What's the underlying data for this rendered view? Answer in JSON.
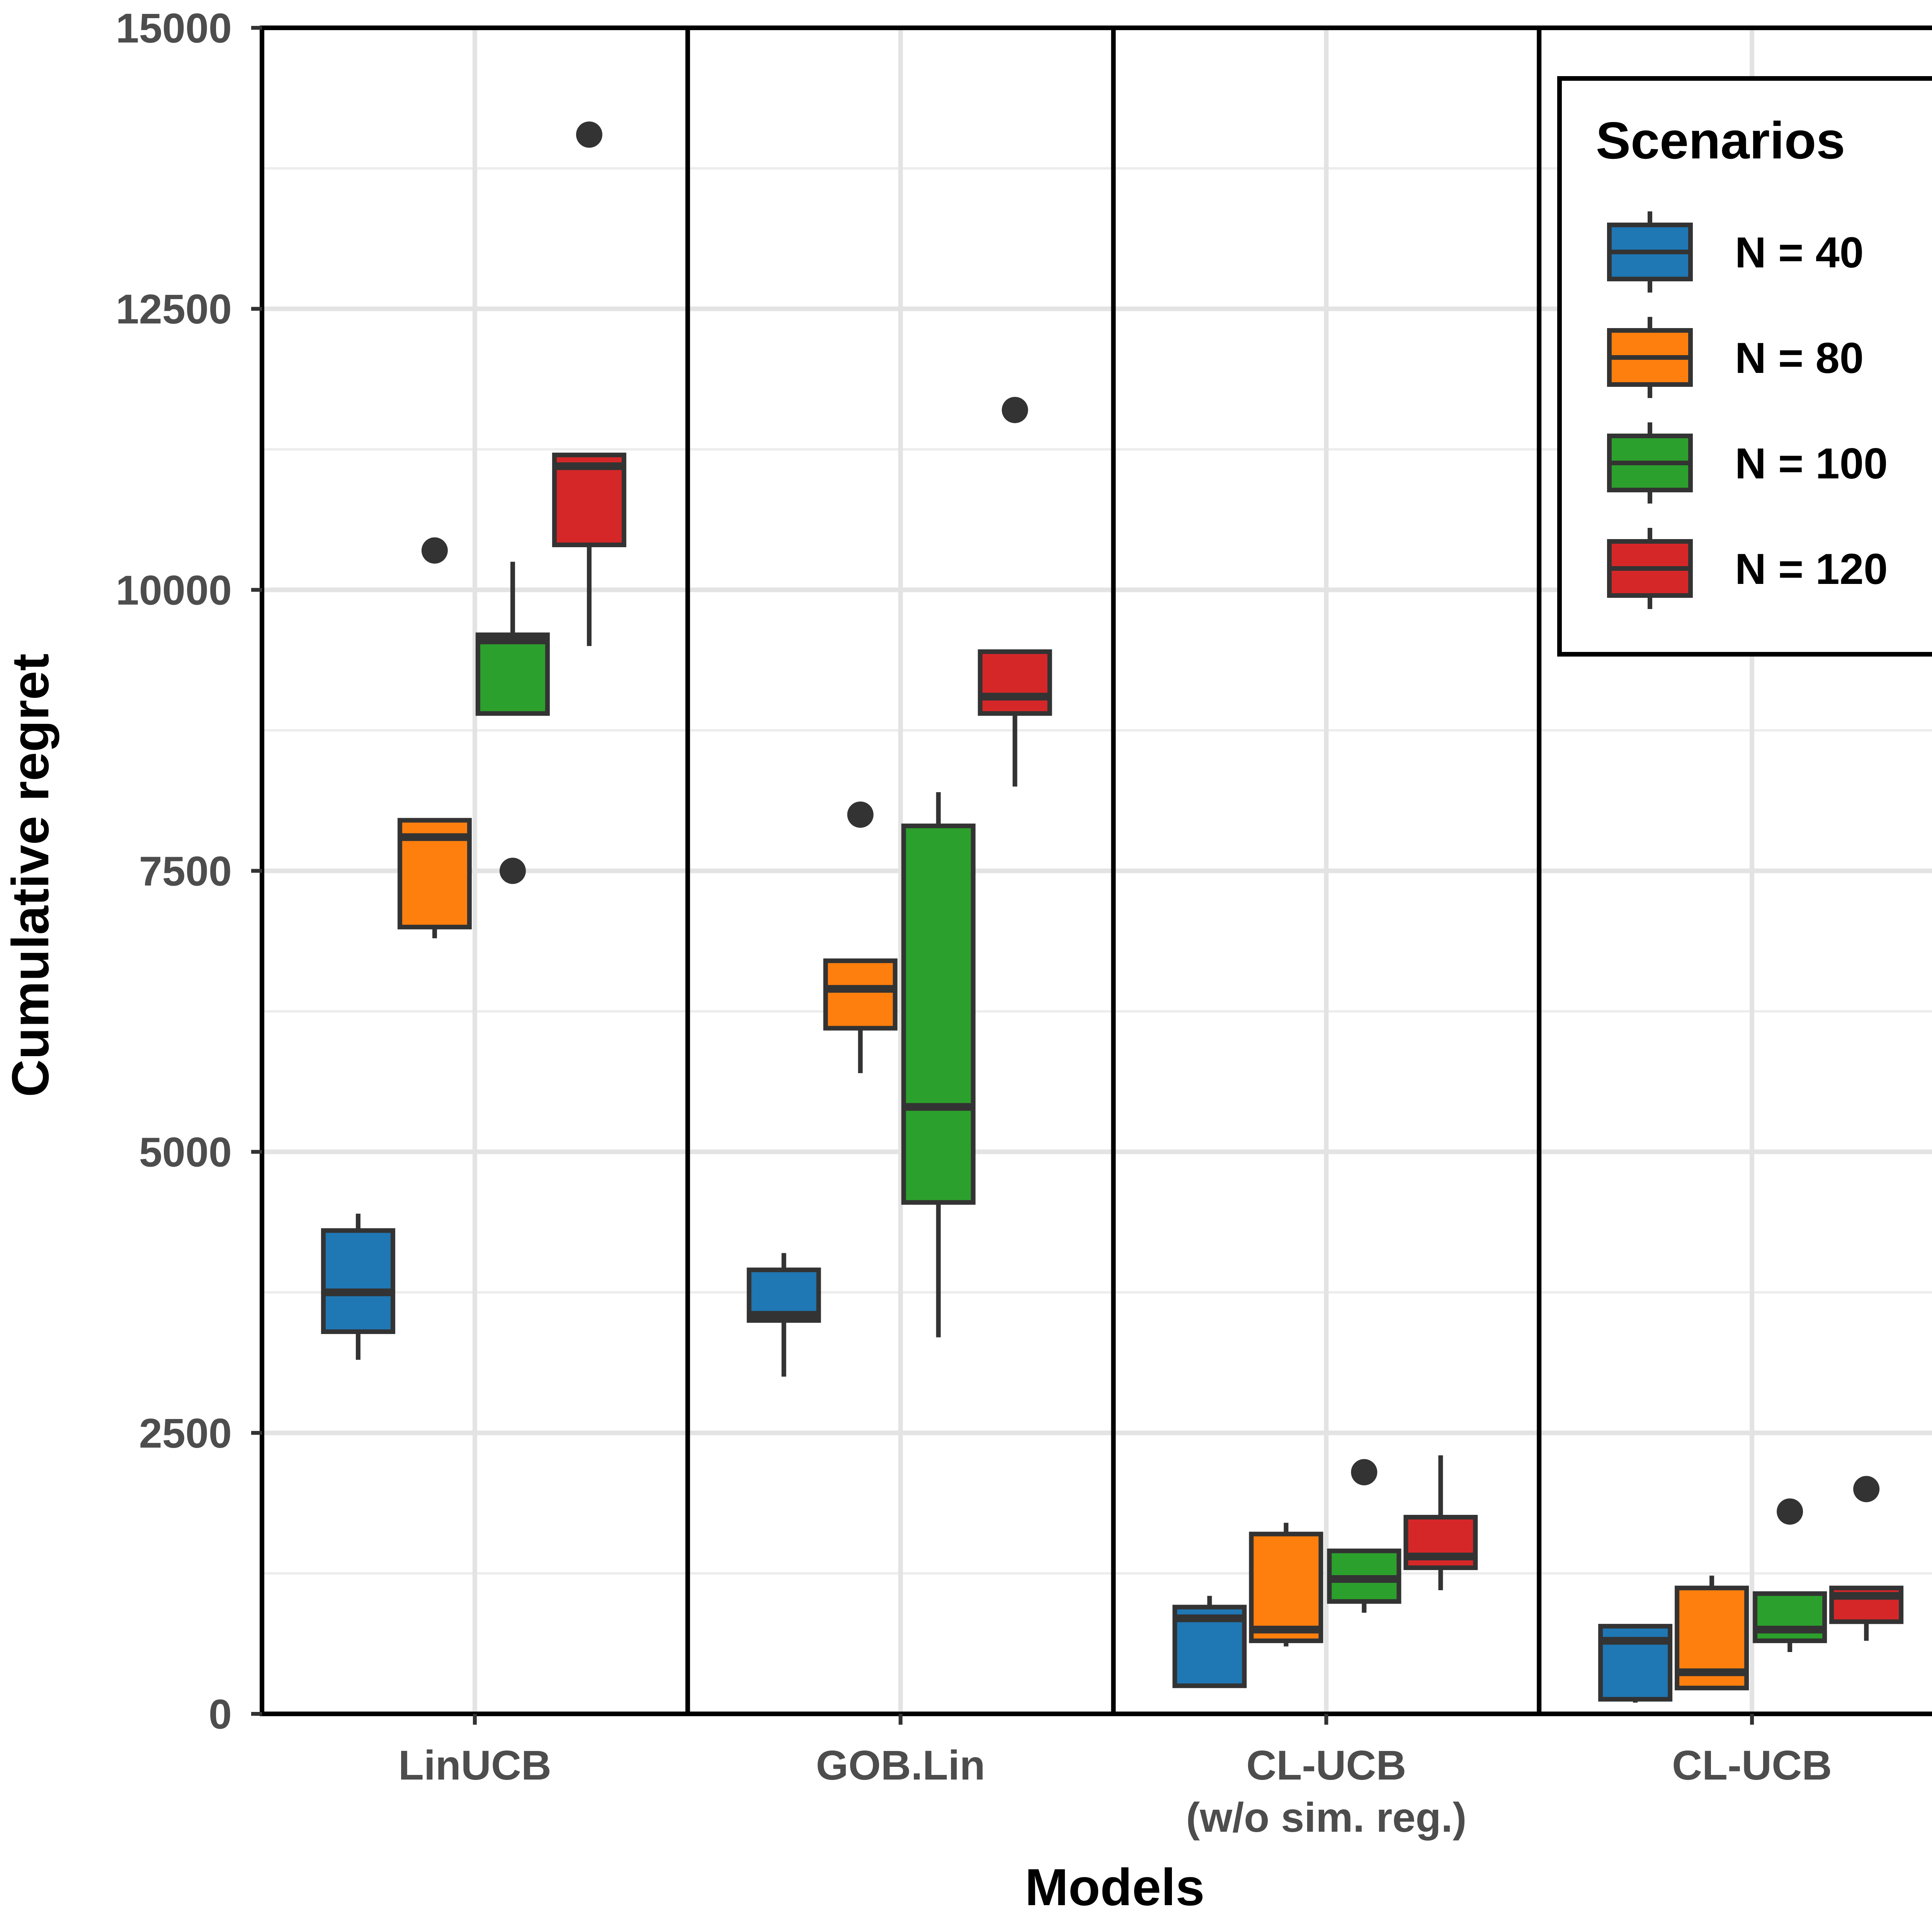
{
  "chart_data": {
    "type": "boxplot",
    "xlabel": "Models",
    "ylabel": "Cumulative regret",
    "ylim": [
      0,
      15000
    ],
    "y_ticks": [
      0,
      2500,
      5000,
      7500,
      10000,
      12500,
      15000
    ],
    "y_tick_labels": [
      "0",
      "2500",
      "5000",
      "7500",
      "10000",
      "12500",
      "15000"
    ],
    "grid": true,
    "panels": [
      {
        "label": [
          "LinUCB"
        ]
      },
      {
        "label": [
          "GOB.Lin"
        ]
      },
      {
        "label": [
          "CL-UCB",
          "(w/o sim. reg.)"
        ]
      },
      {
        "label": [
          "CL-UCB"
        ]
      }
    ],
    "legend": {
      "title": "Scenarios",
      "position": "top-right",
      "entries": [
        "N = 40",
        "N = 80",
        "N = 100",
        "N = 120"
      ]
    },
    "series": [
      {
        "name": "N = 40",
        "color": "#1f77b4",
        "boxes": [
          {
            "min": 3150,
            "q1": 3400,
            "median": 3750,
            "q3": 4300,
            "max": 4450,
            "outliers": []
          },
          {
            "min": 3000,
            "q1": 3500,
            "median": 3550,
            "q3": 3950,
            "max": 4100,
            "outliers": []
          },
          {
            "min": 250,
            "q1": 250,
            "median": 850,
            "q3": 950,
            "max": 1050,
            "outliers": []
          },
          {
            "min": 100,
            "q1": 130,
            "median": 650,
            "q3": 780,
            "max": 800,
            "outliers": []
          }
        ]
      },
      {
        "name": "N = 80",
        "color": "#ff7f0e",
        "boxes": [
          {
            "min": 6900,
            "q1": 7000,
            "median": 7800,
            "q3": 7950,
            "max": 7950,
            "outliers": [
              10350
            ]
          },
          {
            "min": 5700,
            "q1": 6100,
            "median": 6450,
            "q3": 6700,
            "max": 6700,
            "outliers": [
              8000
            ]
          },
          {
            "min": 600,
            "q1": 650,
            "median": 750,
            "q3": 1600,
            "max": 1700,
            "outliers": []
          },
          {
            "min": 230,
            "q1": 230,
            "median": 370,
            "q3": 1120,
            "max": 1230,
            "outliers": []
          }
        ]
      },
      {
        "name": "N = 100",
        "color": "#2ca02c",
        "boxes": [
          {
            "min": 8900,
            "q1": 8900,
            "median": 9550,
            "q3": 9600,
            "max": 10250,
            "outliers": [
              7500
            ]
          },
          {
            "min": 3350,
            "q1": 4550,
            "median": 5400,
            "q3": 7900,
            "max": 8200,
            "outliers": []
          },
          {
            "min": 900,
            "q1": 1000,
            "median": 1200,
            "q3": 1450,
            "max": 1450,
            "outliers": [
              2150
            ]
          },
          {
            "min": 550,
            "q1": 650,
            "median": 750,
            "q3": 1070,
            "max": 1070,
            "outliers": [
              1800
            ]
          }
        ]
      },
      {
        "name": "N = 120",
        "color": "#d62728",
        "boxes": [
          {
            "min": 9500,
            "q1": 10400,
            "median": 11100,
            "q3": 11200,
            "max": 11200,
            "outliers": [
              14050
            ]
          },
          {
            "min": 8250,
            "q1": 8900,
            "median": 9050,
            "q3": 9450,
            "max": 9450,
            "outliers": [
              11600
            ]
          },
          {
            "min": 1100,
            "q1": 1300,
            "median": 1400,
            "q3": 1750,
            "max": 2300,
            "outliers": []
          },
          {
            "min": 650,
            "q1": 820,
            "median": 1050,
            "q3": 1120,
            "max": 1120,
            "outliers": [
              2000
            ]
          }
        ]
      }
    ]
  }
}
